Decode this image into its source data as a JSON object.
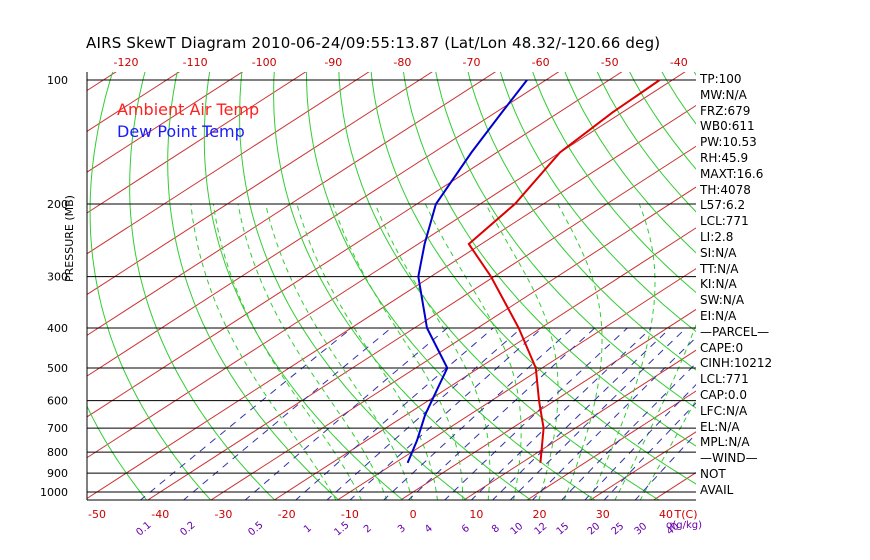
{
  "chart_data": {
    "type": "line",
    "title": "AIRS SkewT Diagram 2010-06-24/09:55:13.87 (Lat/Lon 48.32/-120.66 deg)",
    "ylabel": "PRESSURE (MB)",
    "y_scale": "log",
    "ylim": [
      1000,
      100
    ],
    "xlim_bottom": [
      -50,
      40
    ],
    "pressure_ticks": [
      "100",
      "200",
      "300",
      "400",
      "500",
      "600",
      "700",
      "800",
      "900",
      "1000"
    ],
    "bottom_temp_ticks": [
      "-50",
      "-40",
      "-30",
      "-20",
      "-10",
      "0",
      "10",
      "20",
      "30",
      "40"
    ],
    "top_temp_ticks": [
      "-120",
      "-110",
      "-100",
      "-90",
      "-80",
      "-70",
      "-60",
      "-50",
      "-40"
    ],
    "mixing_ratio_ticks": [
      "0.1",
      "0.2",
      "0.5",
      "1",
      "1.5",
      "2",
      "3",
      "4",
      "6",
      "8",
      "10",
      "12",
      "15",
      "20",
      "25",
      "30",
      "40"
    ],
    "bottom_axis_label": "T(C)",
    "mixing_ratio_label": "q(g/kg)",
    "legend": [
      "Ambient Air Temp",
      "Dew Point Temp"
    ],
    "series": [
      {
        "name": "Ambient Air Temp",
        "color": "#dd0000",
        "points": [
          {
            "p": 850,
            "t": 13.0
          },
          {
            "p": 800,
            "t": 10.5
          },
          {
            "p": 700,
            "t": 5.0
          },
          {
            "p": 600,
            "t": -2.5
          },
          {
            "p": 500,
            "t": -11.0
          },
          {
            "p": 400,
            "t": -23.5
          },
          {
            "p": 300,
            "t": -40.5
          },
          {
            "p": 250,
            "t": -52.0
          },
          {
            "p": 200,
            "t": -54.5
          },
          {
            "p": 150,
            "t": -60.0
          },
          {
            "p": 120,
            "t": -61.5
          },
          {
            "p": 100,
            "t": -62.0
          }
        ]
      },
      {
        "name": "Dew Point Temp",
        "color": "#0000cc",
        "points": [
          {
            "p": 850,
            "t": -8.0
          },
          {
            "p": 750,
            "t": -12.0
          },
          {
            "p": 650,
            "t": -17.0
          },
          {
            "p": 500,
            "t": -25.0
          },
          {
            "p": 400,
            "t": -38.0
          },
          {
            "p": 300,
            "t": -52.0
          },
          {
            "p": 250,
            "t": -59.0
          },
          {
            "p": 200,
            "t": -67.0
          },
          {
            "p": 150,
            "t": -74.0
          },
          {
            "p": 120,
            "t": -79.0
          },
          {
            "p": 100,
            "t": -83.0
          }
        ]
      }
    ]
  },
  "stats": [
    "TP:100",
    "MW:N/A",
    "FRZ:679",
    "WB0:611",
    "PW:10.53",
    "RH:45.9",
    "MAXT:16.6",
    "TH:4078",
    "L57:6.2",
    "LCL:771",
    "LI:2.8",
    "SI:N/A",
    "TT:N/A",
    "KI:N/A",
    "SW:N/A",
    "EI:N/A",
    "—PARCEL—",
    "CAPE:0",
    "CINH:10212",
    "LCL:771",
    "CAP:0.0",
    "LFC:N/A",
    "EL:N/A",
    "MPL:N/A",
    "—WIND—",
    "NOT",
    "AVAIL"
  ],
  "colors": {
    "isotherm": "#cc3333",
    "dry_adiabat": "#33cc33",
    "moist_adiabat": "#33cc33",
    "mixing_ratio": "#3333aa",
    "axis_labels_red": "#cc0000",
    "mixing_labels": "#6600aa"
  }
}
